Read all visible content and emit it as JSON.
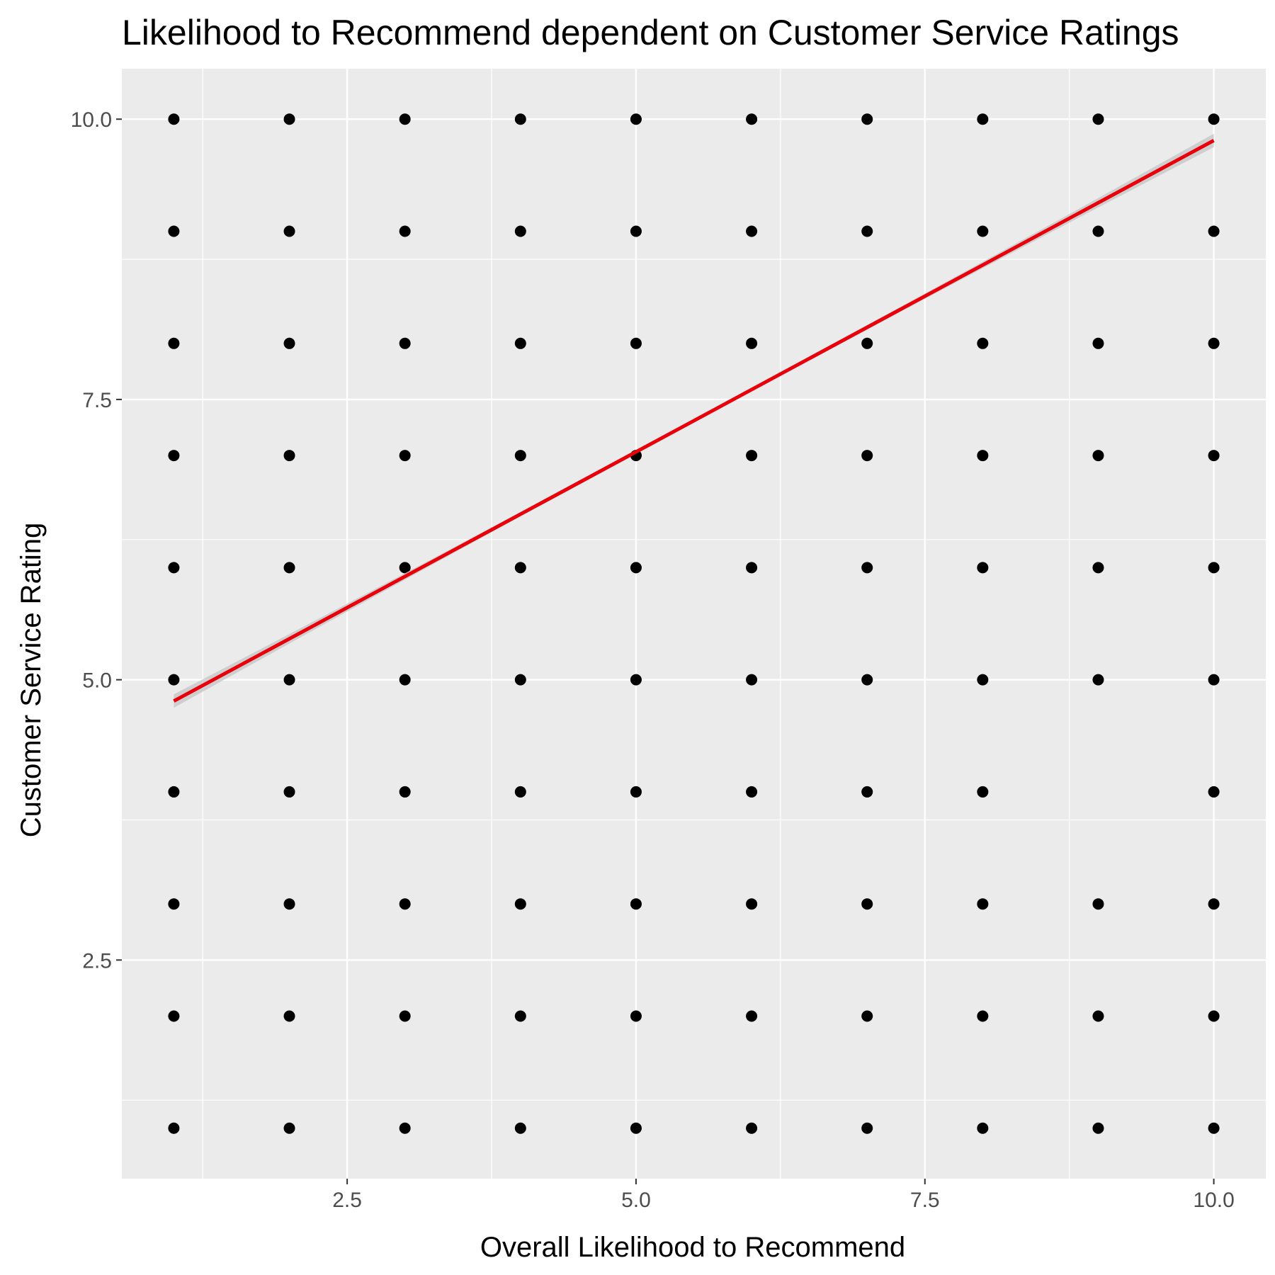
{
  "chart_data": {
    "type": "scatter",
    "title": "Likelihood to Recommend dependent on Customer Service Ratings",
    "xlabel": "Overall Likelihood to Recommend",
    "ylabel": "Customer Service Rating",
    "xlim": [
      0.55,
      10.45
    ],
    "ylim": [
      0.55,
      10.45
    ],
    "x_ticks": [
      2.5,
      5.0,
      7.5,
      10.0
    ],
    "y_ticks": [
      2.5,
      5.0,
      7.5,
      10.0
    ],
    "x_tick_labels": [
      "2.5",
      "5.0",
      "7.5",
      "10.0"
    ],
    "y_tick_labels": [
      "2.5",
      "5.0",
      "7.5",
      "10.0"
    ],
    "grid": true,
    "points": [
      {
        "x": 1,
        "y": 1
      },
      {
        "x": 1,
        "y": 2
      },
      {
        "x": 1,
        "y": 3
      },
      {
        "x": 1,
        "y": 4
      },
      {
        "x": 1,
        "y": 5
      },
      {
        "x": 1,
        "y": 6
      },
      {
        "x": 1,
        "y": 7
      },
      {
        "x": 1,
        "y": 8
      },
      {
        "x": 1,
        "y": 9
      },
      {
        "x": 1,
        "y": 10
      },
      {
        "x": 2,
        "y": 1
      },
      {
        "x": 2,
        "y": 2
      },
      {
        "x": 2,
        "y": 3
      },
      {
        "x": 2,
        "y": 4
      },
      {
        "x": 2,
        "y": 5
      },
      {
        "x": 2,
        "y": 6
      },
      {
        "x": 2,
        "y": 7
      },
      {
        "x": 2,
        "y": 8
      },
      {
        "x": 2,
        "y": 9
      },
      {
        "x": 2,
        "y": 10
      },
      {
        "x": 3,
        "y": 1
      },
      {
        "x": 3,
        "y": 2
      },
      {
        "x": 3,
        "y": 3
      },
      {
        "x": 3,
        "y": 4
      },
      {
        "x": 3,
        "y": 5
      },
      {
        "x": 3,
        "y": 6
      },
      {
        "x": 3,
        "y": 7
      },
      {
        "x": 3,
        "y": 8
      },
      {
        "x": 3,
        "y": 9
      },
      {
        "x": 3,
        "y": 10
      },
      {
        "x": 4,
        "y": 1
      },
      {
        "x": 4,
        "y": 2
      },
      {
        "x": 4,
        "y": 3
      },
      {
        "x": 4,
        "y": 4
      },
      {
        "x": 4,
        "y": 5
      },
      {
        "x": 4,
        "y": 6
      },
      {
        "x": 4,
        "y": 7
      },
      {
        "x": 4,
        "y": 8
      },
      {
        "x": 4,
        "y": 9
      },
      {
        "x": 4,
        "y": 10
      },
      {
        "x": 5,
        "y": 1
      },
      {
        "x": 5,
        "y": 2
      },
      {
        "x": 5,
        "y": 3
      },
      {
        "x": 5,
        "y": 4
      },
      {
        "x": 5,
        "y": 5
      },
      {
        "x": 5,
        "y": 6
      },
      {
        "x": 5,
        "y": 7
      },
      {
        "x": 5,
        "y": 8
      },
      {
        "x": 5,
        "y": 9
      },
      {
        "x": 5,
        "y": 10
      },
      {
        "x": 6,
        "y": 1
      },
      {
        "x": 6,
        "y": 2
      },
      {
        "x": 6,
        "y": 3
      },
      {
        "x": 6,
        "y": 4
      },
      {
        "x": 6,
        "y": 5
      },
      {
        "x": 6,
        "y": 6
      },
      {
        "x": 6,
        "y": 7
      },
      {
        "x": 6,
        "y": 8
      },
      {
        "x": 6,
        "y": 9
      },
      {
        "x": 6,
        "y": 10
      },
      {
        "x": 7,
        "y": 1
      },
      {
        "x": 7,
        "y": 2
      },
      {
        "x": 7,
        "y": 3
      },
      {
        "x": 7,
        "y": 4
      },
      {
        "x": 7,
        "y": 5
      },
      {
        "x": 7,
        "y": 6
      },
      {
        "x": 7,
        "y": 7
      },
      {
        "x": 7,
        "y": 8
      },
      {
        "x": 7,
        "y": 9
      },
      {
        "x": 7,
        "y": 10
      },
      {
        "x": 8,
        "y": 1
      },
      {
        "x": 8,
        "y": 2
      },
      {
        "x": 8,
        "y": 3
      },
      {
        "x": 8,
        "y": 4
      },
      {
        "x": 8,
        "y": 5
      },
      {
        "x": 8,
        "y": 6
      },
      {
        "x": 8,
        "y": 7
      },
      {
        "x": 8,
        "y": 8
      },
      {
        "x": 8,
        "y": 9
      },
      {
        "x": 8,
        "y": 10
      },
      {
        "x": 9,
        "y": 1
      },
      {
        "x": 9,
        "y": 2
      },
      {
        "x": 9,
        "y": 3
      },
      {
        "x": 9,
        "y": 5
      },
      {
        "x": 9,
        "y": 6
      },
      {
        "x": 9,
        "y": 7
      },
      {
        "x": 9,
        "y": 8
      },
      {
        "x": 9,
        "y": 9
      },
      {
        "x": 9,
        "y": 10
      },
      {
        "x": 10,
        "y": 1
      },
      {
        "x": 10,
        "y": 2
      },
      {
        "x": 10,
        "y": 3
      },
      {
        "x": 10,
        "y": 4
      },
      {
        "x": 10,
        "y": 5
      },
      {
        "x": 10,
        "y": 6
      },
      {
        "x": 10,
        "y": 7
      },
      {
        "x": 10,
        "y": 8
      },
      {
        "x": 10,
        "y": 9
      },
      {
        "x": 10,
        "y": 10
      }
    ],
    "trend_line": {
      "method": "linear",
      "start": {
        "x": 1,
        "y": 4.81
      },
      "end": {
        "x": 10,
        "y": 9.81
      },
      "confidence_band": true
    },
    "colors": {
      "panel_background": "#ebebeb",
      "grid": "#ffffff",
      "point": "#000000",
      "trend_line": "#e8000b",
      "confidence_band": "#c4c4c4",
      "tick_label": "#4d4d4d"
    }
  }
}
